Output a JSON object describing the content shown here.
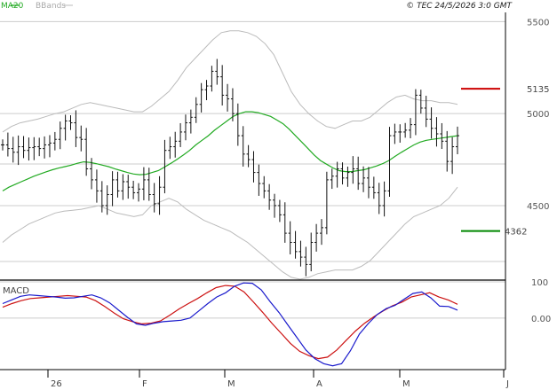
{
  "legend": {
    "ma20_label": "MA20",
    "bbands_label": "BBands",
    "timestamp": "© TEC 24/5/2026 3:0 GMT"
  },
  "colors": {
    "ma20": "#22aa22",
    "bbands": "#bbbbbb",
    "bars": "#111111",
    "macd": "#1a1acc",
    "signal": "#cc1111",
    "resistance": "#cc0000",
    "support": "#008800",
    "grid": "#cccccc",
    "axis": "#000000"
  },
  "chart_data": [
    {
      "type": "ohlc",
      "title": "",
      "ylim": [
        4100,
        5550
      ],
      "yticks": [
        {
          "value": 4500,
          "label": "4500"
        },
        {
          "value": 5000,
          "label": "5000"
        },
        {
          "value": 5500,
          "label": "5500"
        }
      ],
      "x_ticks": [
        {
          "index": 6,
          "label": "26"
        },
        {
          "index": 19,
          "label": "F"
        },
        {
          "index": 36,
          "label": "M"
        },
        {
          "index": 60,
          "label": "A"
        },
        {
          "index": 78,
          "label": "M"
        },
        {
          "index": 101,
          "label": "J"
        }
      ],
      "resistance": {
        "value": 5135,
        "label": "5135"
      },
      "support": {
        "value": 4362,
        "label": "4362"
      },
      "closes": [
        4830,
        4810,
        4790,
        4820,
        4800,
        4815,
        4820,
        4810,
        4830,
        4840,
        4860,
        4920,
        4960,
        4950,
        4870,
        4860,
        4700,
        4640,
        4580,
        4500,
        4560,
        4640,
        4580,
        4630,
        4600,
        4570,
        4590,
        4640,
        4560,
        4510,
        4600,
        4800,
        4820,
        4850,
        4900,
        4950,
        4980,
        5050,
        5130,
        5150,
        5230,
        5200,
        5100,
        5080,
        5000,
        4880,
        4780,
        4750,
        4680,
        4620,
        4580,
        4530,
        4500,
        4450,
        4350,
        4300,
        4250,
        4220,
        4180,
        4300,
        4350,
        4380,
        4640,
        4660,
        4700,
        4650,
        4680,
        4700,
        4620,
        4650,
        4600,
        4570,
        4500,
        4580,
        4880,
        4900,
        4900,
        4910,
        4940,
        5100,
        5030,
        4970,
        4920,
        4890,
        4850,
        4740,
        4820,
        4880
      ],
      "series": [
        {
          "name": "MA20",
          "values": [
            4580,
            4600,
            4615,
            4630,
            4645,
            4660,
            4672,
            4684,
            4695,
            4704,
            4712,
            4720,
            4730,
            4738,
            4735,
            4728,
            4720,
            4712,
            4700,
            4690,
            4680,
            4672,
            4668,
            4670,
            4680,
            4690,
            4710,
            4730,
            4752,
            4775,
            4800,
            4830,
            4855,
            4880,
            4910,
            4935,
            4960,
            4985,
            5000,
            5010,
            5010,
            5005,
            4995,
            4985,
            4965,
            4945,
            4915,
            4880,
            4845,
            4810,
            4775,
            4745,
            4725,
            4705,
            4690,
            4685,
            4685,
            4690,
            4695,
            4705,
            4715,
            4728,
            4745,
            4768,
            4790,
            4810,
            4830,
            4845,
            4855,
            4860,
            4865,
            4870,
            4875,
            4880
          ]
        },
        {
          "name": "BBands upper",
          "values": [
            4900,
            4930,
            4950,
            4960,
            4970,
            4985,
            5000,
            5010,
            5030,
            5050,
            5060,
            5050,
            5040,
            5030,
            5020,
            5010,
            5010,
            5040,
            5080,
            5120,
            5180,
            5250,
            5300,
            5350,
            5400,
            5440,
            5450,
            5450,
            5440,
            5420,
            5380,
            5320,
            5220,
            5120,
            5050,
            5000,
            4960,
            4930,
            4920,
            4940,
            4960,
            4960,
            4980,
            5020,
            5060,
            5090,
            5100,
            5080,
            5070,
            5070,
            5060,
            5060,
            5050
          ]
        },
        {
          "name": "BBands lower",
          "values": [
            4300,
            4340,
            4370,
            4400,
            4420,
            4440,
            4460,
            4470,
            4475,
            4480,
            4490,
            4500,
            4480,
            4460,
            4450,
            4440,
            4450,
            4500,
            4520,
            4540,
            4520,
            4480,
            4450,
            4420,
            4400,
            4380,
            4360,
            4330,
            4300,
            4260,
            4220,
            4180,
            4140,
            4110,
            4100,
            4110,
            4130,
            4140,
            4150,
            4150,
            4150,
            4170,
            4200,
            4250,
            4300,
            4350,
            4400,
            4440,
            4460,
            4480,
            4500,
            4540,
            4600
          ]
        }
      ]
    },
    {
      "type": "line",
      "title": "",
      "label": "MACD",
      "ylim": [
        -140,
        100
      ],
      "yticks": [
        {
          "value": 100,
          "label": "100"
        },
        {
          "value": 0,
          "label": "0.00"
        }
      ],
      "series": [
        {
          "name": "MACD",
          "values": [
            40,
            50,
            60,
            64,
            62,
            60,
            58,
            55,
            56,
            60,
            64,
            56,
            42,
            22,
            2,
            -16,
            -20,
            -14,
            -10,
            -8,
            -6,
            0,
            20,
            40,
            58,
            70,
            88,
            97,
            96,
            78,
            45,
            15,
            -20,
            -54,
            -88,
            -112,
            -126,
            -132,
            -126,
            -90,
            -44,
            -15,
            10,
            26,
            35,
            52,
            68,
            72,
            56,
            33,
            32,
            22
          ]
        },
        {
          "name": "Signal",
          "values": [
            30,
            40,
            48,
            54,
            56,
            58,
            60,
            62,
            60,
            58,
            48,
            32,
            14,
            -2,
            -10,
            -16,
            -14,
            -8,
            8,
            25,
            40,
            54,
            70,
            84,
            90,
            88,
            72,
            45,
            16,
            -14,
            -42,
            -70,
            -92,
            -104,
            -112,
            -108,
            -88,
            -62,
            -36,
            -14,
            4,
            20,
            34,
            44,
            58,
            64,
            70,
            58,
            50,
            38
          ]
        }
      ]
    }
  ]
}
